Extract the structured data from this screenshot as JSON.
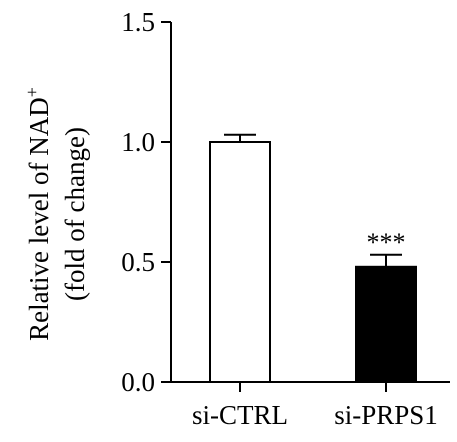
{
  "chart_data": {
    "type": "bar",
    "categories": [
      "si-CTRL",
      "si-PRPS1"
    ],
    "values": [
      1.0,
      0.48
    ],
    "errors": [
      0.03,
      0.05
    ],
    "bar_fills": [
      "#ffffff",
      "#000000"
    ],
    "bar_stroke": "#000000",
    "ylim": [
      0,
      1.5
    ],
    "yticks": [
      "0.0",
      "0.5",
      "1.0",
      "1.5"
    ],
    "ylabel": {
      "line1": "Relative level of NAD",
      "superscript": "+",
      "line2": "(fold of change)"
    },
    "xlabel": "",
    "annotations": [
      {
        "category": "si-PRPS1",
        "text": "***"
      }
    ],
    "grid": false,
    "legend": "none"
  }
}
